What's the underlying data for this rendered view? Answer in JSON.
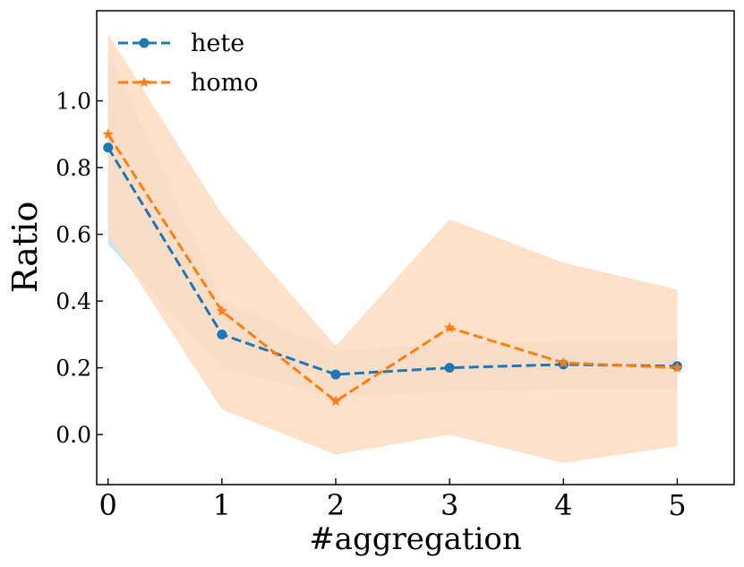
{
  "chart_data": {
    "type": "line",
    "title": "",
    "xlabel": "#aggregation",
    "ylabel": "Ratio",
    "xlim": [
      -0.1,
      5.5
    ],
    "ylim": [
      -0.15,
      1.27
    ],
    "x": [
      0,
      1,
      2,
      3,
      4,
      5
    ],
    "x_ticks": [
      "0",
      "1",
      "2",
      "3",
      "4",
      "5"
    ],
    "y_ticks": [
      {
        "value": 0.0,
        "label": "0.0"
      },
      {
        "value": 0.2,
        "label": "0.2"
      },
      {
        "value": 0.4,
        "label": "0.4"
      },
      {
        "value": 0.6,
        "label": "0.6"
      },
      {
        "value": 0.8,
        "label": "0.8"
      },
      {
        "value": 1.0,
        "label": "1.0"
      }
    ],
    "grid": false,
    "legend_position": "top-left",
    "series": [
      {
        "name": "hete",
        "color": "#1f77b4",
        "band_color": "#a6cde8",
        "marker": "circle",
        "linestyle": "dashed",
        "values": [
          0.86,
          0.3,
          0.18,
          0.2,
          0.21,
          0.205
        ],
        "lower": [
          0.57,
          0.2,
          0.11,
          0.13,
          0.135,
          0.135
        ],
        "upper": [
          1.15,
          0.4,
          0.25,
          0.275,
          0.28,
          0.28
        ]
      },
      {
        "name": "homo",
        "color": "#ff7f0e",
        "band_color": "#ffdcc0",
        "marker": "star",
        "linestyle": "dashed",
        "values": [
          0.9,
          0.37,
          0.1,
          0.32,
          0.215,
          0.2
        ],
        "lower": [
          0.6,
          0.075,
          -0.06,
          0.0,
          -0.085,
          -0.035
        ],
        "upper": [
          1.2,
          0.66,
          0.265,
          0.645,
          0.515,
          0.435
        ]
      }
    ]
  }
}
